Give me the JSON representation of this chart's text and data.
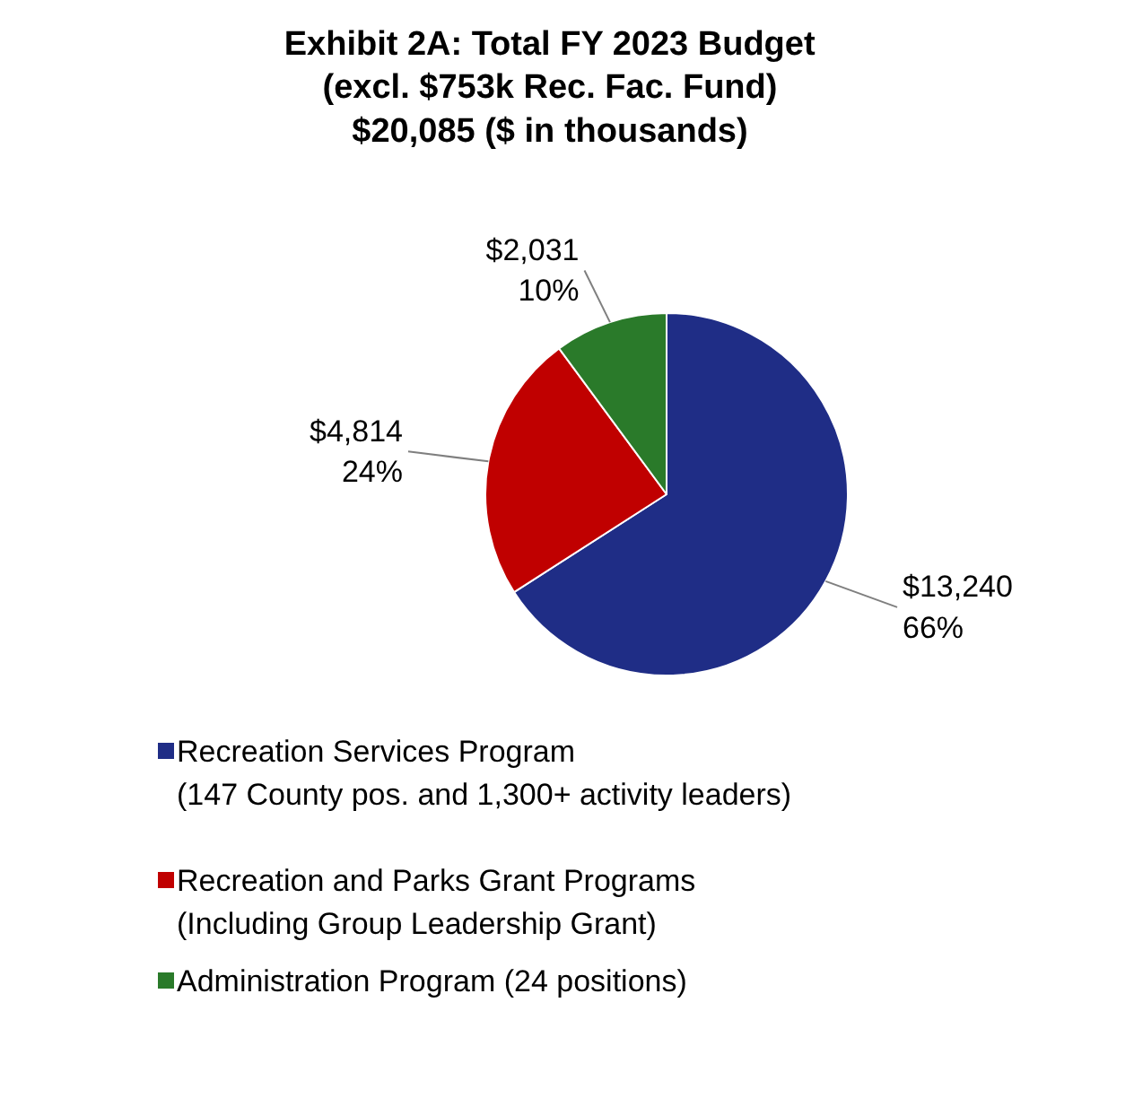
{
  "chart_data": {
    "type": "pie",
    "title": "Exhibit 2A: Total FY 2023 Budget\n(excl. $753k Rec. Fac. Fund)\n$20,085 ($ in thousands)",
    "categories": [
      "Recreation Services Program\n(147 County pos. and 1,300+ activity leaders)",
      "Recreation and Parks Grant Programs\n(Including Group Leadership Grant)",
      "Administration Program (24 positions)"
    ],
    "values": [
      13240,
      4814,
      2031
    ],
    "colors": [
      "#1f2d86",
      "#c00000",
      "#2a7a2a"
    ],
    "value_labels": [
      "$13,240\n66%",
      "$4,814\n24%",
      "$2,031\n10%"
    ],
    "legend": "bottom"
  }
}
